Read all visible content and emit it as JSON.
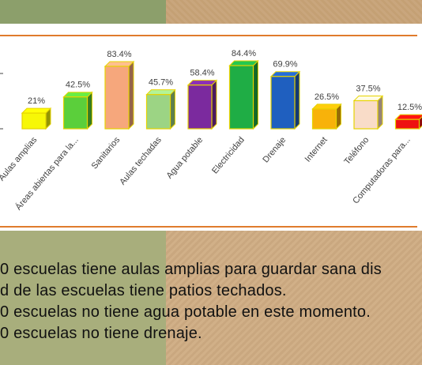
{
  "chart_data": {
    "type": "bar",
    "categories": [
      "Aulas amplias",
      "Áreas abiertas para la...",
      "Sanitarios",
      "Aulas techadas",
      "Agua potable",
      "Electricidad",
      "Drenaje",
      "Internet",
      "Teléfono",
      "Computadoras para..."
    ],
    "values": [
      21,
      42.5,
      83.4,
      45.7,
      58.4,
      84.4,
      69.9,
      26.5,
      37.5,
      12.5
    ],
    "value_labels": [
      "21%",
      "42.5%",
      "83.4%",
      "45.7%",
      "58.4%",
      "84.4%",
      "69.9%",
      "26.5%",
      "37.5%",
      "12.5%"
    ],
    "colors": [
      "#f7f706",
      "#5bcf3b",
      "#f6a77c",
      "#9cd484",
      "#7b2a9e",
      "#1fad45",
      "#1f5fbf",
      "#f8b20a",
      "#f9dcc8",
      "#ee1111"
    ],
    "title": "",
    "xlabel": "",
    "ylabel": "",
    "ylim": [
      0,
      100
    ],
    "grid": false,
    "legend": "none"
  },
  "caption": {
    "lines": [
      "0 escuelas tiene aulas amplias para guardar sana dis",
      "d de las escuelas tiene patios techados.",
      "0 escuelas no tiene agua potable en este momento.",
      "0 escuelas no tiene drenaje."
    ]
  },
  "colors": {
    "accent_rule": "#e07b2c",
    "bar_outline": "#e6d300"
  }
}
